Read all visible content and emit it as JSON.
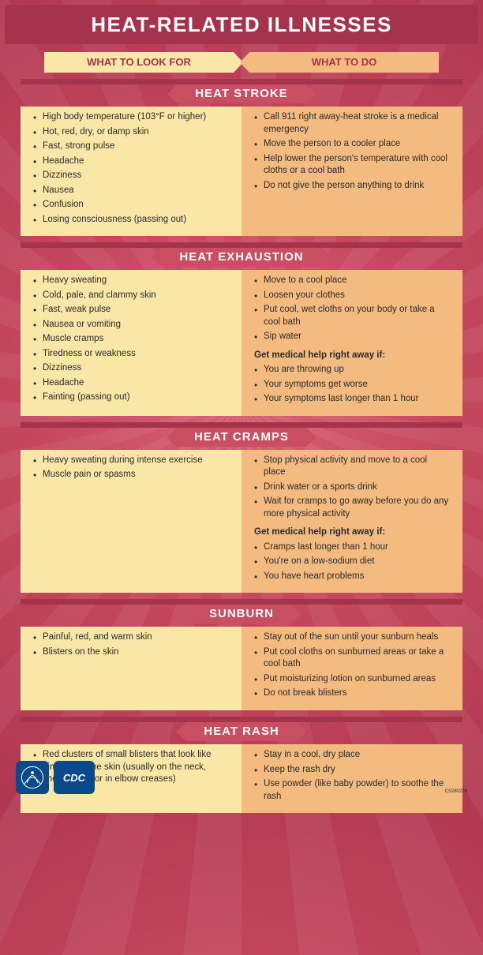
{
  "colors": {
    "header_band": "#a5334b",
    "section_title": "#c94e62",
    "left_col_bg": "#f9e7a8",
    "right_col_bg": "#f3bb7f",
    "text": "#2a2a2a",
    "page_bg_inner": "#da6175",
    "page_bg_outer": "#b13851",
    "logo_bg": "#0b4a8a"
  },
  "typography": {
    "title_fontsize": 26,
    "section_title_fontsize": 15,
    "tab_fontsize": 13,
    "body_fontsize": 11.5
  },
  "title": "HEAT-RELATED ILLNESSES",
  "tabs": {
    "left": "WHAT TO LOOK FOR",
    "right": "WHAT TO DO"
  },
  "sections": [
    {
      "title": "HEAT STROKE",
      "look_for": [
        "High body temperature (103°F or higher)",
        "Hot, red, dry, or damp skin",
        "Fast, strong pulse",
        "Headache",
        "Dizziness",
        "Nausea",
        "Confusion",
        "Losing consciousness (passing out)"
      ],
      "what_to_do": [
        "Call 911 right away-heat stroke is a medical emergency",
        "Move the person to a cooler place",
        "Help lower the person's temperature with cool cloths or a cool bath",
        "Do not give the person anything to drink"
      ]
    },
    {
      "title": "HEAT EXHAUSTION",
      "look_for": [
        "Heavy sweating",
        "Cold, pale, and clammy skin",
        "Fast, weak pulse",
        "Nausea or vomiting",
        "Muscle cramps",
        "Tiredness or weakness",
        "Dizziness",
        "Headache",
        "Fainting (passing out)"
      ],
      "what_to_do": [
        "Move to a cool place",
        "Loosen your clothes",
        "Put cool, wet cloths on your body or take a cool bath",
        "Sip water"
      ],
      "subhead": "Get medical help right away if:",
      "sub_items": [
        "You are throwing up",
        "Your symptoms get worse",
        "Your symptoms last longer than 1 hour"
      ]
    },
    {
      "title": "HEAT CRAMPS",
      "look_for": [
        "Heavy sweating during intense exercise",
        "Muscle pain or spasms"
      ],
      "what_to_do": [
        "Stop physical activity and move to a cool place",
        "Drink water or a sports drink",
        "Wait for cramps to go away before you do any more physical activity"
      ],
      "subhead": "Get medical help right away if:",
      "sub_items": [
        "Cramps last longer than 1 hour",
        "You're on a low-sodium diet",
        "You have heart problems"
      ]
    },
    {
      "title": "SUNBURN",
      "look_for": [
        "Painful, red, and warm skin",
        "Blisters on the skin"
      ],
      "what_to_do": [
        "Stay out of the sun until your sunburn heals",
        "Put cool cloths on sunburned areas or take a cool bath",
        "Put moisturizing lotion on sunburned areas",
        "Do not break blisters"
      ]
    },
    {
      "title": "HEAT RASH",
      "look_for": [
        "Red clusters of small blisters that look like pimples on the skin (usually on the neck, chest, groin, or in elbow creases)"
      ],
      "what_to_do": [
        "Stay in a cool, dry place",
        "Keep the rash dry",
        "Use powder (like baby powder) to soothe the rash"
      ]
    }
  ],
  "footer": {
    "cdc_label": "CDC",
    "pub_no": "CS280226"
  }
}
